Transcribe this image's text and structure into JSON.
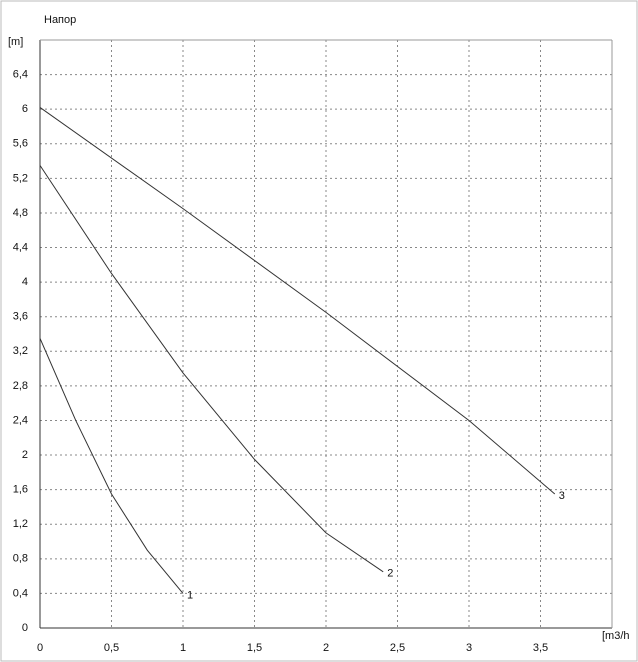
{
  "chart_data": {
    "type": "line",
    "title": "Напор",
    "y_label": "[m]",
    "x_label": "[m3/h",
    "xlim": [
      0,
      4
    ],
    "ylim": [
      0,
      6.8
    ],
    "xticks": [
      0,
      {
        "value": 0.5,
        "label": "0,5"
      },
      1,
      {
        "value": 1.5,
        "label": "1,5"
      },
      2,
      {
        "value": 2.5,
        "label": "2,5"
      },
      3,
      {
        "value": 3.5,
        "label": "3,5"
      }
    ],
    "yticks": [
      0,
      {
        "value": 0.4,
        "label": "0,4"
      },
      {
        "value": 0.8,
        "label": "0,8"
      },
      {
        "value": 1.2,
        "label": "1,2"
      },
      {
        "value": 1.6,
        "label": "1,6"
      },
      2,
      {
        "value": 2.4,
        "label": "2,4"
      },
      {
        "value": 2.8,
        "label": "2,8"
      },
      {
        "value": 3.2,
        "label": "3,2"
      },
      {
        "value": 3.6,
        "label": "3,6"
      },
      4,
      {
        "value": 4.4,
        "label": "4,4"
      },
      {
        "value": 4.8,
        "label": "4,8"
      },
      {
        "value": 5.2,
        "label": "5,2"
      },
      {
        "value": 5.6,
        "label": "5,6"
      },
      6,
      {
        "value": 6.4,
        "label": "6,4"
      }
    ],
    "grid": true,
    "series": [
      {
        "name": "1",
        "color": "#333333",
        "x": [
          0,
          0.25,
          0.5,
          0.75,
          1
        ],
        "values": [
          3.35,
          2.4,
          1.55,
          0.9,
          0.4
        ]
      },
      {
        "name": "2",
        "color": "#333333",
        "x": [
          0,
          0.5,
          1,
          1.5,
          2,
          2.4
        ],
        "values": [
          5.35,
          4.1,
          2.95,
          1.95,
          1.1,
          0.65
        ]
      },
      {
        "name": "3",
        "color": "#333333",
        "x": [
          0,
          1,
          2,
          3,
          3.6
        ],
        "values": [
          6.02,
          4.85,
          3.65,
          2.4,
          1.55
        ]
      }
    ]
  }
}
